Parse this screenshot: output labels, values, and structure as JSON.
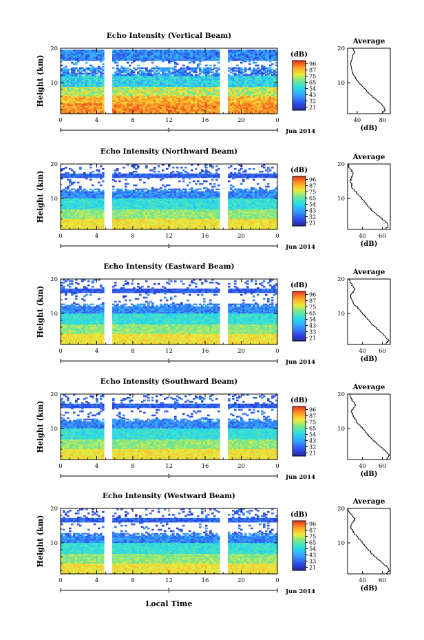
{
  "chart_data": {
    "type": "heatmap",
    "panels": [
      {
        "title": "Echo Intensity (Vertical Beam)",
        "colorbar": {
          "unit": "(dB)",
          "ticks": [
            "96",
            "87",
            "75",
            "65",
            "54",
            "43",
            "32",
            "21"
          ]
        },
        "profile": {
          "title": "Average",
          "xticks": [
            "40",
            "80"
          ],
          "xlabel": "(dB)",
          "xlim": [
            25,
            92
          ],
          "height_km": [
            1,
            2,
            3,
            4,
            5,
            6,
            7,
            8,
            9,
            10,
            11,
            12,
            13,
            14,
            15,
            16,
            17,
            18,
            19,
            20
          ],
          "values_db": [
            78,
            84,
            82,
            77,
            70,
            64,
            58,
            53,
            48,
            43,
            39,
            35,
            33,
            31,
            30,
            30,
            32,
            34,
            36,
            33
          ]
        }
      },
      {
        "title": "Echo Intensity (Northward Beam)",
        "colorbar": {
          "unit": "(dB)",
          "ticks": [
            "96",
            "87",
            "75",
            "65",
            "54",
            "43",
            "32",
            "21"
          ]
        },
        "profile": {
          "title": "Average",
          "xticks": [
            "40",
            "60"
          ],
          "xlabel": "(dB)",
          "xlim": [
            25,
            68
          ],
          "height_km": [
            1,
            2,
            3,
            4,
            5,
            6,
            7,
            8,
            9,
            10,
            11,
            12,
            13,
            14,
            15,
            16,
            17,
            18,
            19,
            20
          ],
          "values_db": [
            63,
            66,
            64,
            60,
            56,
            52,
            48,
            45,
            42,
            39,
            36,
            33,
            30,
            29,
            28,
            29,
            31,
            29,
            27,
            26
          ]
        }
      },
      {
        "title": "Echo Intensity (Eastward Beam)",
        "colorbar": {
          "unit": "(dB)",
          "ticks": [
            "96",
            "87",
            "75",
            "65",
            "54",
            "43",
            "33",
            "21"
          ]
        },
        "profile": {
          "title": "Average",
          "xticks": [
            "40",
            "60"
          ],
          "xlabel": "(dB)",
          "xlim": [
            25,
            68
          ],
          "height_km": [
            1,
            2,
            3,
            4,
            5,
            6,
            7,
            8,
            9,
            10,
            11,
            12,
            13,
            14,
            15,
            16,
            17,
            18,
            19,
            20
          ],
          "values_db": [
            63,
            66,
            64,
            61,
            57,
            53,
            49,
            46,
            43,
            40,
            37,
            34,
            31,
            29,
            28,
            30,
            32,
            30,
            28,
            27
          ]
        }
      },
      {
        "title": "Echo Intensity (Southward Beam)",
        "colorbar": {
          "unit": "(dB)",
          "ticks": [
            "96",
            "87",
            "75",
            "65",
            "54",
            "43",
            "32",
            "21"
          ]
        },
        "profile": {
          "title": "Average",
          "xticks": [
            "40",
            "60"
          ],
          "xlabel": "(dB)",
          "xlim": [
            25,
            68
          ],
          "height_km": [
            1,
            2,
            3,
            4,
            5,
            6,
            7,
            8,
            9,
            10,
            11,
            12,
            13,
            14,
            15,
            16,
            17,
            18,
            19,
            20
          ],
          "values_db": [
            64,
            67,
            65,
            61,
            57,
            53,
            49,
            46,
            43,
            40,
            37,
            34,
            32,
            30,
            29,
            31,
            33,
            30,
            28,
            27
          ]
        }
      },
      {
        "title": "Echo Intensity (Westward Beam)",
        "colorbar": {
          "unit": "(dB)",
          "ticks": [
            "96",
            "87",
            "75",
            "65",
            "54",
            "43",
            "33",
            "21"
          ]
        },
        "profile": {
          "title": "Average",
          "xticks": [
            "40",
            "60"
          ],
          "xlabel": "(dB)",
          "xlim": [
            25,
            68
          ],
          "height_km": [
            1,
            2,
            3,
            4,
            5,
            6,
            7,
            8,
            9,
            10,
            11,
            12,
            13,
            14,
            15,
            16,
            17,
            18,
            19,
            20
          ],
          "values_db": [
            64,
            67,
            65,
            61,
            57,
            53,
            49,
            46,
            43,
            40,
            37,
            34,
            31,
            29,
            28,
            30,
            33,
            29,
            26,
            25
          ]
        }
      }
    ],
    "ylabel": "Height (km)",
    "yticks": [
      "10",
      "20"
    ],
    "ylim": [
      1,
      20
    ],
    "xticks": [
      "0",
      "4",
      "8",
      "12",
      "16",
      "20",
      "0"
    ],
    "xlim": [
      0,
      24
    ],
    "day_label": "1",
    "month_label": "Jun 2014",
    "xlabel": "Local Time",
    "data_gaps_hours": [
      [
        4.8,
        5.8
      ],
      [
        17.7,
        18.5
      ]
    ]
  }
}
